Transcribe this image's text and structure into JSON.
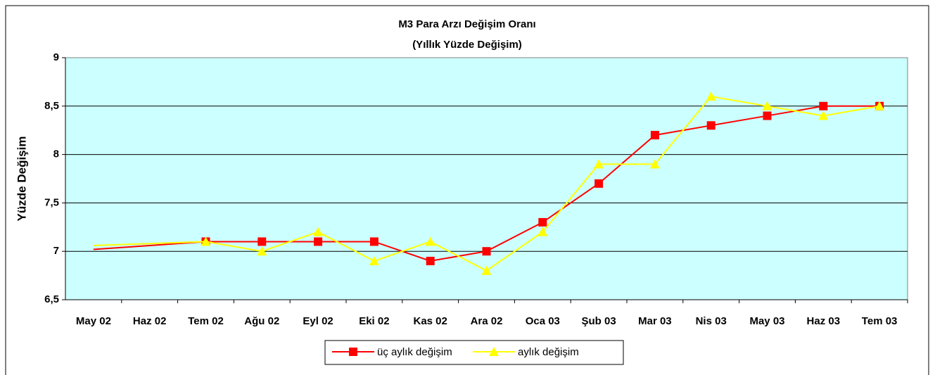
{
  "chart_data": {
    "type": "line",
    "title": "M3 Para Arzı Değişim Oranı",
    "subtitle": "(Yıllık Yüzde Değişim)",
    "y_label": "Yüzde Değişim",
    "categories": [
      "May 02",
      "Haz 02",
      "Tem 02",
      "Ağu 02",
      "Eyl 02",
      "Eki 02",
      "Kas 02",
      "Ara 02",
      "Oca 03",
      "Şub 03",
      "Mar 03",
      "Nis 03",
      "May 03",
      "Haz 03",
      "Tem 03"
    ],
    "series": [
      {
        "name": "üç aylık değişim",
        "color": "#ff0000",
        "marker": "square",
        "values": [
          7.02,
          7.06,
          7.1,
          7.1,
          7.1,
          7.1,
          6.9,
          7.0,
          7.3,
          7.7,
          8.2,
          8.3,
          8.4,
          8.5,
          8.5
        ]
      },
      {
        "name": "aylık değişim",
        "color": "#ffff00",
        "marker": "triangle",
        "values": [
          7.06,
          7.08,
          7.1,
          7.0,
          7.2,
          6.9,
          7.1,
          6.8,
          7.2,
          7.9,
          7.9,
          8.6,
          8.5,
          8.4,
          8.5
        ]
      }
    ],
    "ylim": [
      6.5,
      9
    ],
    "yticks": [
      {
        "value": 6.5,
        "label": "6,5"
      },
      7,
      {
        "value": 7.5,
        "label": "7,5"
      },
      8,
      {
        "value": 8.5,
        "label": "8,5"
      },
      9
    ],
    "grid": true,
    "legend": "bottom"
  }
}
